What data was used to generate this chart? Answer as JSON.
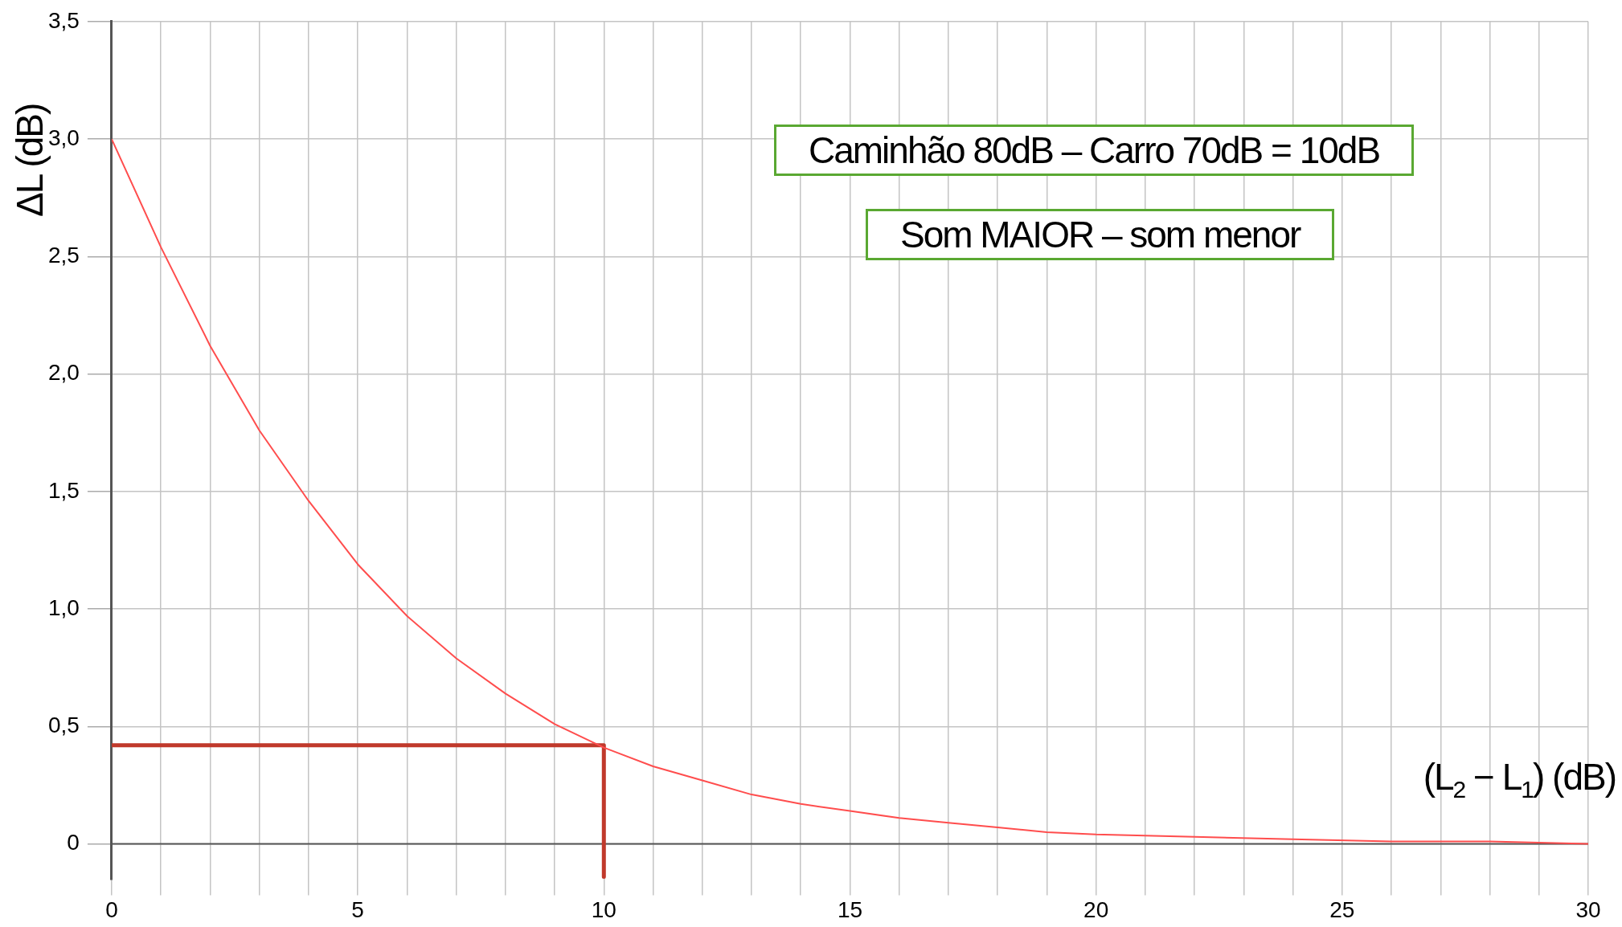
{
  "chart_data": {
    "type": "line",
    "xlabel": "(L$_{2}$ − L$_{1}$) (dB)",
    "ylabel": "ΔL (dB)",
    "annotations": [
      "Caminhão 80dB – Carro 70dB  =  10dB",
      "Som MAIOR – som menor"
    ],
    "series": [
      {
        "color": "#ff4d4d",
        "x": [
          0,
          1,
          2,
          3,
          4,
          5,
          6,
          7,
          8,
          9,
          10,
          11,
          12,
          13,
          14,
          15,
          16,
          17,
          18,
          19,
          20,
          22,
          24,
          26,
          28,
          30
        ],
        "values": [
          3.0,
          2.54,
          2.12,
          1.76,
          1.46,
          1.19,
          0.97,
          0.79,
          0.64,
          0.51,
          0.41,
          0.33,
          0.27,
          0.21,
          0.17,
          0.14,
          0.11,
          0.09,
          0.07,
          0.05,
          0.04,
          0.03,
          0.02,
          0.01,
          0.01,
          0.0
        ]
      },
      {
        "color": "#c0392b",
        "x": [
          0,
          10,
          10
        ],
        "values": [
          0.42,
          0.42,
          -0.14
        ]
      }
    ],
    "xlim": [
      0,
      30
    ],
    "xticks": [
      0,
      {
        "value": 1,
        "label": null
      },
      {
        "value": 2,
        "label": null
      },
      {
        "value": 3,
        "label": null
      },
      {
        "value": 4,
        "label": null
      },
      5,
      {
        "value": 6,
        "label": null
      },
      {
        "value": 7,
        "label": null
      },
      {
        "value": 8,
        "label": null
      },
      {
        "value": 9,
        "label": null
      },
      10,
      {
        "value": 11,
        "label": null
      },
      {
        "value": 12,
        "label": null
      },
      {
        "value": 13,
        "label": null
      },
      {
        "value": 14,
        "label": null
      },
      15,
      {
        "value": 16,
        "label": null
      },
      {
        "value": 17,
        "label": null
      },
      {
        "value": 18,
        "label": null
      },
      {
        "value": 19,
        "label": null
      },
      20,
      {
        "value": 21,
        "label": null
      },
      {
        "value": 22,
        "label": null
      },
      {
        "value": 23,
        "label": null
      },
      {
        "value": 24,
        "label": null
      },
      25,
      {
        "value": 26,
        "label": null
      },
      {
        "value": 27,
        "label": null
      },
      {
        "value": 28,
        "label": null
      },
      {
        "value": 29,
        "label": null
      },
      30
    ],
    "ylim": [
      -0.15,
      3.5
    ],
    "yticks": [
      0,
      {
        "value": 0.5,
        "label": "0,5"
      },
      {
        "value": 1.0,
        "label": "1,0"
      },
      {
        "value": 1.5,
        "label": "1,5"
      },
      {
        "value": 2.0,
        "label": "2,0"
      },
      {
        "value": 2.5,
        "label": "2,5"
      },
      {
        "value": 3.0,
        "label": "3,0"
      },
      {
        "value": 3.5,
        "label": "3,5"
      }
    ],
    "grid": true,
    "legend": false,
    "marker": "none",
    "line_style": "solid"
  }
}
